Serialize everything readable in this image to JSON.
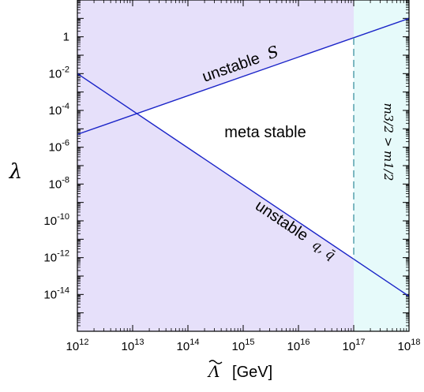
{
  "chart_data": {
    "type": "line",
    "title": "",
    "xlabel_symbol": "Λ",
    "xlabel_unit": "[GeV]",
    "ylabel": "λ",
    "x_scale": "log",
    "y_scale": "log",
    "xlim": [
      1000000000000.0,
      1e+18
    ],
    "ylim": [
      1e-16,
      100.0
    ],
    "grid": false,
    "x_ticks": [
      {
        "value": 1000000000000.0,
        "base": "10",
        "exp": "12"
      },
      {
        "value": 10000000000000.0,
        "base": "10",
        "exp": "13"
      },
      {
        "value": 100000000000000.0,
        "base": "10",
        "exp": "14"
      },
      {
        "value": 1000000000000000.0,
        "base": "10",
        "exp": "15"
      },
      {
        "value": 1e+16,
        "base": "10",
        "exp": "16"
      },
      {
        "value": 1e+17,
        "base": "10",
        "exp": "17"
      },
      {
        "value": 1e+18,
        "base": "10",
        "exp": "18"
      }
    ],
    "y_ticks": [
      {
        "value": 1,
        "base": "1",
        "exp": ""
      },
      {
        "value": 0.01,
        "base": "10",
        "exp": "-2"
      },
      {
        "value": 0.0001,
        "base": "10",
        "exp": "-4"
      },
      {
        "value": 1e-06,
        "base": "10",
        "exp": "-6"
      },
      {
        "value": 1e-08,
        "base": "10",
        "exp": "-8"
      },
      {
        "value": 1e-10,
        "base": "10",
        "exp": "-10"
      },
      {
        "value": 1e-12,
        "base": "10",
        "exp": "-12"
      },
      {
        "value": 1e-14,
        "base": "10",
        "exp": "-14"
      }
    ],
    "lines": [
      {
        "id": "upper",
        "x": [
          1000000000000.0,
          1e+18
        ],
        "y": [
          5e-06,
          10
        ],
        "color": "#1a24c8"
      },
      {
        "id": "lower",
        "x": [
          1000000000000.0,
          1e+18
        ],
        "y": [
          0.01,
          8e-15
        ],
        "color": "#1a24c8"
      }
    ],
    "divider": {
      "x": 1e+17,
      "color": "#4a9aa8",
      "style": "dashed"
    },
    "regions": {
      "unstable_color": "#e6e0fa",
      "meta_stable_color": "#ffffff",
      "gravitino_color": "#e6fafa"
    },
    "annotations": {
      "upper_region": {
        "text": "unstable",
        "symbol": "S"
      },
      "middle_region": {
        "text": "meta stable"
      },
      "lower_region": {
        "text": "unstable",
        "symbol": "q, q̄"
      },
      "right_region": {
        "text": "m3/2 > m1/2"
      }
    }
  }
}
